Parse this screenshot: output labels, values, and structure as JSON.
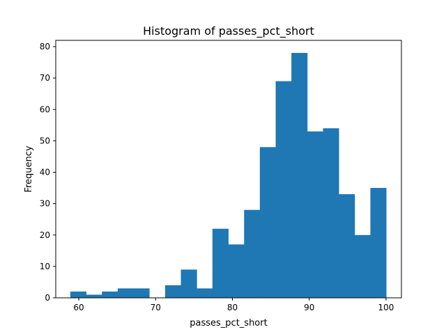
{
  "chart_data": {
    "type": "bar",
    "title": "Histogram of passes_pct_short",
    "xlabel": "passes_pct_short",
    "ylabel": "Frequency",
    "bin_edges": [
      58.9,
      60.96,
      63.01,
      65.07,
      67.12,
      69.18,
      71.24,
      73.29,
      75.35,
      77.4,
      79.46,
      81.52,
      83.57,
      85.63,
      87.68,
      89.74,
      91.79,
      93.85,
      95.91,
      97.96,
      100.02
    ],
    "values": [
      2,
      1,
      2,
      3,
      3,
      0,
      4,
      9,
      3,
      22,
      17,
      28,
      48,
      69,
      78,
      53,
      54,
      33,
      20,
      35
    ],
    "xlim": [
      57.0,
      102.0
    ],
    "ylim": [
      0,
      82
    ],
    "xticks": [
      60,
      70,
      80,
      90,
      100
    ],
    "yticks": [
      0,
      10,
      20,
      30,
      40,
      50,
      60,
      70,
      80
    ],
    "bar_color": "#1f77b4",
    "grid": false,
    "legend": "none"
  }
}
